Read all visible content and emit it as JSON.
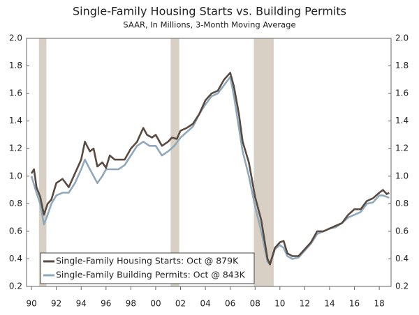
{
  "chart_data": {
    "type": "line",
    "title": "Single-Family Housing Starts vs. Building Permits",
    "subtitle": "SAAR, In Millions, 3-Month Moving Average",
    "xlim": [
      1989.6,
      2018.95
    ],
    "xticks": [
      {
        "value": 1990,
        "label": "90"
      },
      {
        "value": 1992,
        "label": "92"
      },
      {
        "value": 1994,
        "label": "94"
      },
      {
        "value": 1996,
        "label": "96"
      },
      {
        "value": 1998,
        "label": "98"
      },
      {
        "value": 2000,
        "label": "00"
      },
      {
        "value": 2002,
        "label": "02"
      },
      {
        "value": 2004,
        "label": "04"
      },
      {
        "value": 2006,
        "label": "06"
      },
      {
        "value": 2008,
        "label": "08"
      },
      {
        "value": 2010,
        "label": "10"
      },
      {
        "value": 2012,
        "label": "12"
      },
      {
        "value": 2014,
        "label": "14"
      },
      {
        "value": 2016,
        "label": "16"
      },
      {
        "value": 2018,
        "label": "18"
      }
    ],
    "ylim": [
      0.2,
      2.0
    ],
    "yticks": [
      0.2,
      0.4,
      0.6,
      0.8,
      {
        "value": 1,
        "label": "1.0"
      },
      1.2,
      1.4,
      1.6,
      1.8,
      {
        "value": 2,
        "label": "2.0"
      }
    ],
    "y2lim": [
      0.2,
      2.0
    ],
    "y2ticks": [
      0.2,
      0.4,
      0.6,
      0.8,
      {
        "value": 1,
        "label": "1.0"
      },
      1.2,
      1.4,
      1.6,
      1.8,
      {
        "value": 2,
        "label": "2.0"
      }
    ],
    "shaded_periods": [
      [
        1990.6,
        1991.2
      ],
      [
        2001.2,
        2001.9
      ],
      [
        2007.9,
        2009.5
      ]
    ],
    "shade_color": "#d8d0c4",
    "legend": "lower left",
    "series": [
      {
        "name": "Single-Family Housing Starts: Oct @ 879K",
        "color": "#594a41",
        "x": [
          1990.0,
          1990.2,
          1990.4,
          1990.7,
          1991.0,
          1991.3,
          1991.6,
          1992.0,
          1992.5,
          1993.0,
          1993.5,
          1994.0,
          1994.3,
          1994.7,
          1995.0,
          1995.3,
          1995.7,
          1996.0,
          1996.3,
          1996.7,
          1997.0,
          1997.5,
          1998.0,
          1998.5,
          1999.0,
          1999.3,
          1999.7,
          2000.0,
          2000.5,
          2001.0,
          2001.3,
          2001.7,
          2002.0,
          2002.5,
          2003.0,
          2003.5,
          2004.0,
          2004.5,
          2005.0,
          2005.5,
          2006.0,
          2006.3,
          2006.7,
          2007.0,
          2007.5,
          2008.0,
          2008.5,
          2009.0,
          2009.2,
          2009.6,
          2010.0,
          2010.3,
          2010.6,
          2011.0,
          2011.5,
          2012.0,
          2012.5,
          2013.0,
          2013.5,
          2014.0,
          2014.5,
          2015.0,
          2015.5,
          2016.0,
          2016.5,
          2017.0,
          2017.5,
          2018.0,
          2018.3,
          2018.6,
          2018.8
        ],
        "values": [
          1.02,
          1.05,
          0.92,
          0.85,
          0.72,
          0.8,
          0.83,
          0.95,
          0.98,
          0.92,
          1.02,
          1.12,
          1.25,
          1.18,
          1.2,
          1.07,
          1.1,
          1.06,
          1.15,
          1.12,
          1.12,
          1.12,
          1.2,
          1.25,
          1.35,
          1.3,
          1.28,
          1.3,
          1.22,
          1.25,
          1.28,
          1.27,
          1.33,
          1.35,
          1.38,
          1.45,
          1.55,
          1.6,
          1.62,
          1.7,
          1.75,
          1.65,
          1.45,
          1.25,
          1.1,
          0.85,
          0.68,
          0.4,
          0.36,
          0.48,
          0.52,
          0.53,
          0.44,
          0.42,
          0.42,
          0.47,
          0.52,
          0.6,
          0.6,
          0.62,
          0.64,
          0.66,
          0.72,
          0.76,
          0.76,
          0.82,
          0.84,
          0.88,
          0.9,
          0.87,
          0.879
        ]
      },
      {
        "name": "Single-Family Building Permits: Oct @ 843K",
        "color": "#8fa9ba",
        "x": [
          1990.0,
          1990.4,
          1990.7,
          1991.0,
          1991.3,
          1991.6,
          1992.0,
          1992.5,
          1993.0,
          1993.5,
          1994.0,
          1994.3,
          1994.7,
          1995.0,
          1995.3,
          1995.7,
          1996.0,
          1996.5,
          1997.0,
          1997.5,
          1998.0,
          1998.5,
          1999.0,
          1999.5,
          2000.0,
          2000.5,
          2001.0,
          2001.5,
          2002.0,
          2002.5,
          2003.0,
          2003.5,
          2004.0,
          2004.5,
          2005.0,
          2005.5,
          2006.0,
          2006.3,
          2006.7,
          2007.0,
          2007.5,
          2008.0,
          2008.5,
          2009.0,
          2009.2,
          2009.6,
          2010.0,
          2010.3,
          2010.6,
          2011.0,
          2011.5,
          2012.0,
          2012.5,
          2013.0,
          2013.5,
          2014.0,
          2014.5,
          2015.0,
          2015.5,
          2016.0,
          2016.5,
          2017.0,
          2017.5,
          2018.0,
          2018.3,
          2018.6,
          2018.8
        ],
        "values": [
          1.0,
          0.88,
          0.8,
          0.65,
          0.72,
          0.8,
          0.86,
          0.88,
          0.88,
          0.95,
          1.05,
          1.12,
          1.05,
          1.0,
          0.95,
          1.0,
          1.05,
          1.05,
          1.05,
          1.08,
          1.15,
          1.22,
          1.25,
          1.22,
          1.22,
          1.15,
          1.18,
          1.22,
          1.28,
          1.32,
          1.36,
          1.45,
          1.52,
          1.58,
          1.6,
          1.66,
          1.72,
          1.58,
          1.35,
          1.18,
          1.0,
          0.78,
          0.6,
          0.38,
          0.36,
          0.47,
          0.5,
          0.48,
          0.42,
          0.4,
          0.41,
          0.46,
          0.51,
          0.58,
          0.6,
          0.62,
          0.63,
          0.66,
          0.7,
          0.72,
          0.74,
          0.8,
          0.81,
          0.86,
          0.86,
          0.85,
          0.843
        ]
      }
    ]
  }
}
